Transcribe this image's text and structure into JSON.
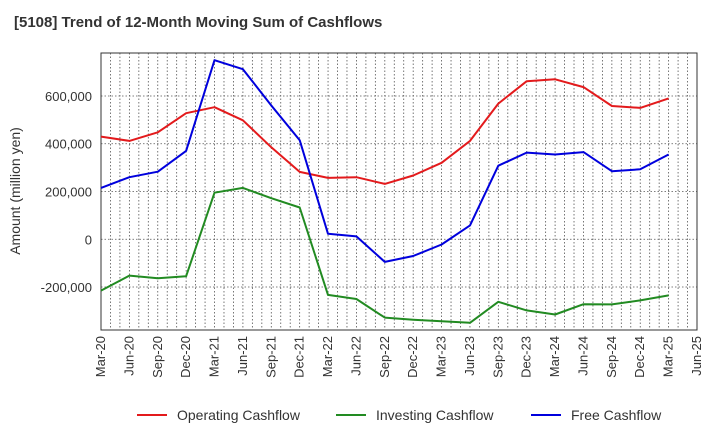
{
  "chart_data": {
    "type": "line",
    "title": "[5108]  Trend of 12-Month Moving Sum of Cashflows",
    "ylabel": "Amount (million yen)",
    "xlabel": "",
    "x": [
      "Mar-20",
      "Jun-20",
      "Sep-20",
      "Dec-20",
      "Mar-21",
      "Jun-21",
      "Sep-21",
      "Dec-21",
      "Mar-22",
      "Jun-22",
      "Sep-22",
      "Dec-22",
      "Mar-23",
      "Jun-23",
      "Sep-23",
      "Dec-23",
      "Mar-24",
      "Jun-24",
      "Sep-24",
      "Dec-24",
      "Mar-25"
    ],
    "x_ticks": [
      "Mar-20",
      "Jun-20",
      "Sep-20",
      "Dec-20",
      "Mar-21",
      "Jun-21",
      "Sep-21",
      "Dec-21",
      "Mar-22",
      "Jun-22",
      "Sep-22",
      "Dec-22",
      "Mar-23",
      "Jun-23",
      "Sep-23",
      "Dec-23",
      "Mar-24",
      "Jun-24",
      "Sep-24",
      "Dec-24",
      "Mar-25",
      "Jun-25"
    ],
    "ylim": [
      -380000,
      780000
    ],
    "y_ticks": [
      -200000,
      0,
      200000,
      400000,
      600000
    ],
    "y_tick_labels": [
      "-200,000",
      "0",
      "200,000",
      "400,000",
      "600,000"
    ],
    "grid": true,
    "legend_position": "bottom",
    "series": [
      {
        "name": "Operating Cashflow",
        "color": "#e31a1c",
        "values": [
          430000,
          412000,
          448000,
          528000,
          553000,
          498000,
          385000,
          282000,
          257000,
          260000,
          232000,
          267000,
          320000,
          412000,
          568000,
          662000,
          670000,
          637000,
          558000,
          550000,
          590000
        ]
      },
      {
        "name": "Investing Cashflow",
        "color": "#228b22",
        "values": [
          -215000,
          -152000,
          -163000,
          -155000,
          195000,
          215000,
          172000,
          133000,
          -233000,
          -250000,
          -328000,
          -337000,
          -343000,
          -350000,
          -262000,
          -298000,
          -315000,
          -272000,
          -273000,
          -256000,
          -235000
        ]
      },
      {
        "name": "Free Cashflow",
        "color": "#0000dd",
        "values": [
          215000,
          260000,
          283000,
          370000,
          750000,
          712000,
          560000,
          415000,
          23000,
          12000,
          -95000,
          -70000,
          -22000,
          58000,
          308000,
          363000,
          355000,
          365000,
          285000,
          293000,
          355000
        ]
      }
    ]
  }
}
